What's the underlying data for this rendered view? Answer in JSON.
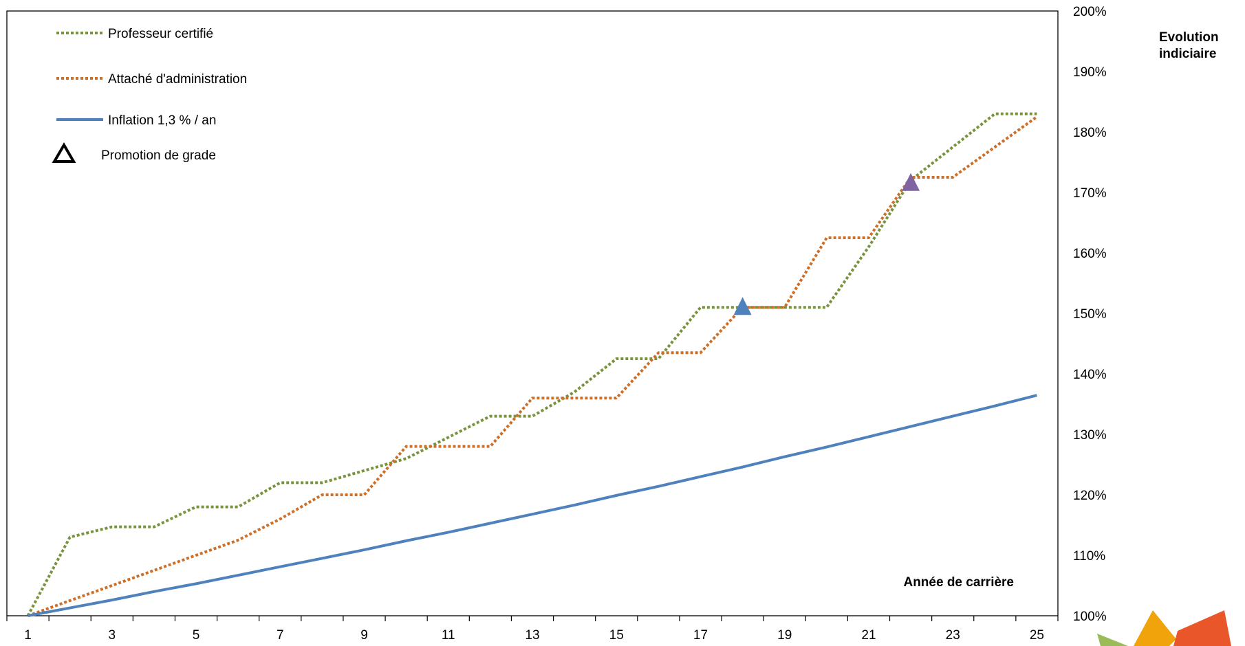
{
  "chart_data": {
    "type": "line",
    "xlabel": "Année de carrière",
    "ylabel_lines": [
      "Evolution",
      "indiciaire"
    ],
    "xlim": [
      0.5,
      25.5
    ],
    "ylim": [
      1.0,
      2.0
    ],
    "x_ticks": [
      1,
      3,
      5,
      7,
      9,
      11,
      13,
      15,
      17,
      19,
      21,
      23,
      25
    ],
    "x_tick_labels": [
      "1",
      "3",
      "5",
      "7",
      "9",
      "11",
      "13",
      "15",
      "17",
      "19",
      "21",
      "23",
      "25"
    ],
    "y_ticks": [
      1.0,
      1.1,
      1.2,
      1.3,
      1.4,
      1.5,
      1.6,
      1.7,
      1.8,
      1.9,
      2.0
    ],
    "y_tick_labels": [
      "100%",
      "110%",
      "120%",
      "130%",
      "140%",
      "150%",
      "160%",
      "170%",
      "180%",
      "190%",
      "200%"
    ],
    "y_axis_side": "right",
    "grid": false,
    "legend_position": "top-left",
    "x": [
      1,
      2,
      3,
      4,
      5,
      6,
      7,
      8,
      9,
      10,
      11,
      12,
      13,
      14,
      15,
      16,
      17,
      18,
      19,
      20,
      21,
      22,
      23,
      24,
      25
    ],
    "series": [
      {
        "name": "Professeur certifié",
        "color": "#77933c",
        "style": "dotted",
        "values": [
          1.0,
          1.13,
          1.147,
          1.147,
          1.18,
          1.18,
          1.22,
          1.22,
          1.24,
          1.26,
          1.295,
          1.33,
          1.33,
          1.37,
          1.425,
          1.425,
          1.51,
          1.51,
          1.51,
          1.51,
          1.61,
          1.72,
          1.775,
          1.83,
          1.83
        ]
      },
      {
        "name": "Attaché d'administration",
        "color": "#cc6f28",
        "style": "dotted",
        "values": [
          1.0,
          1.025,
          1.05,
          1.075,
          1.1,
          1.125,
          1.16,
          1.2,
          1.2,
          1.28,
          1.28,
          1.28,
          1.36,
          1.36,
          1.36,
          1.435,
          1.435,
          1.51,
          1.51,
          1.625,
          1.625,
          1.725,
          1.725,
          1.775,
          1.825
        ]
      },
      {
        "name": "Inflation 1,3 % / an",
        "color": "#4f81bd",
        "style": "solid",
        "values": [
          1.0,
          1.013,
          1.026,
          1.04,
          1.053,
          1.067,
          1.081,
          1.095,
          1.109,
          1.124,
          1.138,
          1.153,
          1.168,
          1.183,
          1.199,
          1.214,
          1.23,
          1.246,
          1.263,
          1.279,
          1.296,
          1.313,
          1.33,
          1.347,
          1.3645
        ]
      }
    ],
    "markers": [
      {
        "x": 18,
        "y": 1.51,
        "color": "#4f81bd",
        "shape": "triangle"
      },
      {
        "x": 22,
        "y": 1.715,
        "color": "#8064a2",
        "shape": "triangle"
      }
    ],
    "legend": [
      {
        "label": "Professeur certifié",
        "color": "#77933c",
        "style": "dotted"
      },
      {
        "label": "Attaché d'administration",
        "color": "#cc6f28",
        "style": "dotted"
      },
      {
        "label": "Inflation 1,3 % / an",
        "color": "#4f81bd",
        "style": "solid"
      },
      {
        "label": "Promotion de grade",
        "color": "#000000",
        "style": "triangle-outline"
      }
    ]
  },
  "logo": {
    "colors": [
      "#9bbb59",
      "#f0a30a",
      "#e8562a"
    ]
  }
}
